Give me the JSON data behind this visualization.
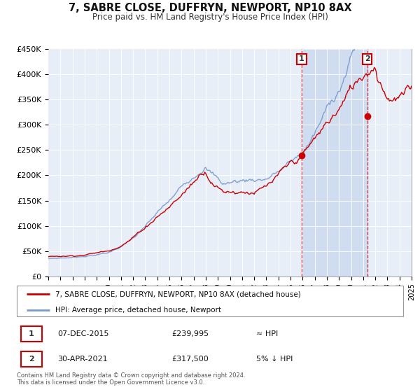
{
  "title": "7, SABRE CLOSE, DUFFRYN, NEWPORT, NP10 8AX",
  "subtitle": "Price paid vs. HM Land Registry's House Price Index (HPI)",
  "xlim": [
    1995,
    2025
  ],
  "ylim": [
    0,
    450000
  ],
  "yticks": [
    0,
    50000,
    100000,
    150000,
    200000,
    250000,
    300000,
    350000,
    400000,
    450000
  ],
  "ytick_labels": [
    "£0",
    "£50K",
    "£100K",
    "£150K",
    "£200K",
    "£250K",
    "£300K",
    "£350K",
    "£400K",
    "£450K"
  ],
  "xticks": [
    1995,
    1996,
    1997,
    1998,
    1999,
    2000,
    2001,
    2002,
    2003,
    2004,
    2005,
    2006,
    2007,
    2008,
    2009,
    2010,
    2011,
    2012,
    2013,
    2014,
    2015,
    2016,
    2017,
    2018,
    2019,
    2020,
    2021,
    2022,
    2023,
    2024,
    2025
  ],
  "hpi_color": "#7799cc",
  "price_color": "#cc0000",
  "bg_color": "#e8eef8",
  "shade_color": "#d0dcf0",
  "marker1_date": 2015.92,
  "marker1_price": 239995,
  "marker2_date": 2021.33,
  "marker2_price": 317500,
  "annotation1": "1",
  "annotation2": "2",
  "legend_label1": "7, SABRE CLOSE, DUFFRYN, NEWPORT, NP10 8AX (detached house)",
  "legend_label2": "HPI: Average price, detached house, Newport",
  "table_row1": [
    "1",
    "07-DEC-2015",
    "£239,995",
    "≈ HPI"
  ],
  "table_row2": [
    "2",
    "30-APR-2021",
    "£317,500",
    "5% ↓ HPI"
  ],
  "footnote1": "Contains HM Land Registry data © Crown copyright and database right 2024.",
  "footnote2": "This data is licensed under the Open Government Licence v3.0."
}
